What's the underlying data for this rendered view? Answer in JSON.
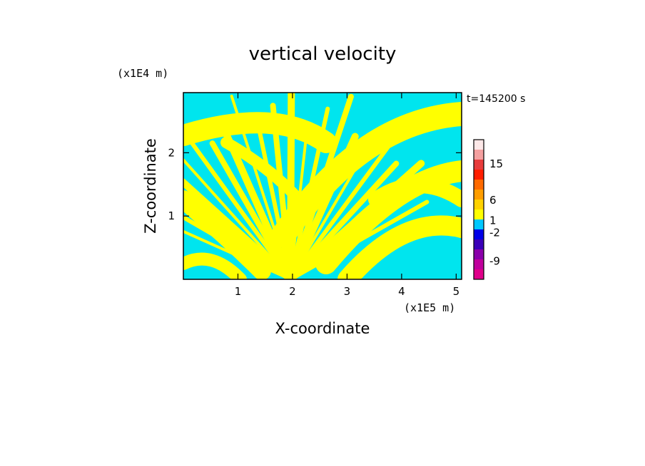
{
  "chart_data": {
    "type": "heatmap",
    "title": "vertical velocity",
    "xlabel": "X-coordinate",
    "ylabel": "Z-coordinate",
    "x_unit": "(x1E5 m)",
    "y_unit": "(x1E4 m)",
    "time_label": "t=145200 s",
    "xlim": [
      0,
      5.1
    ],
    "ylim": [
      0,
      2.95
    ],
    "x_ticks": [
      "1",
      "2",
      "3",
      "4",
      "5"
    ],
    "x_tick_values": [
      1,
      2,
      3,
      4,
      5
    ],
    "y_ticks": [
      "1",
      "2"
    ],
    "y_tick_values": [
      1,
      2
    ],
    "field_colors": {
      "positive": "#ffff00",
      "negative": "#00e5ee"
    },
    "colorbar": {
      "bands": [
        {
          "color": "#e0008a"
        },
        {
          "color": "#c0009c"
        },
        {
          "color": "#8a00aa"
        },
        {
          "color": "#3a00b8"
        },
        {
          "color": "#0000e8"
        },
        {
          "color": "#00c8ff"
        },
        {
          "color": "#ffff00"
        },
        {
          "color": "#ffd200"
        },
        {
          "color": "#ff9e00"
        },
        {
          "color": "#ff6a00"
        },
        {
          "color": "#ff1e00"
        },
        {
          "color": "#e83c3c"
        },
        {
          "color": "#f4a0a0"
        },
        {
          "color": "#fde8e8"
        }
      ],
      "labels": [
        "15",
        "6",
        "1",
        "-2",
        "-9"
      ],
      "label_values": [
        15,
        6,
        1,
        -2,
        -9
      ]
    }
  }
}
